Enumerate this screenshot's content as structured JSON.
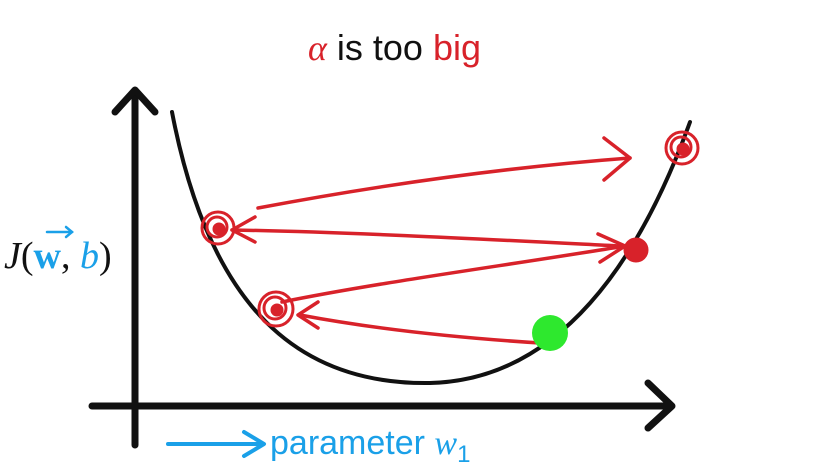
{
  "title": {
    "alpha": "α",
    "middle": " is too ",
    "big": "big"
  },
  "y_axis_label": {
    "j": "J",
    "open": "(",
    "w": "w",
    "comma": ", ",
    "b": "b",
    "close": ")"
  },
  "x_axis_label": {
    "parameter": "parameter ",
    "w": "w",
    "subscript": "1"
  },
  "colors": {
    "red": "#d8222a",
    "blue": "#1aa0e8",
    "black": "#111111",
    "green": "#2ee82e"
  },
  "icons": {
    "x_arrow": "right-arrow-icon",
    "y_arrow": "up-arrow-icon",
    "start_point": "green-dot-icon",
    "step_points": "circled-point-icon"
  }
}
